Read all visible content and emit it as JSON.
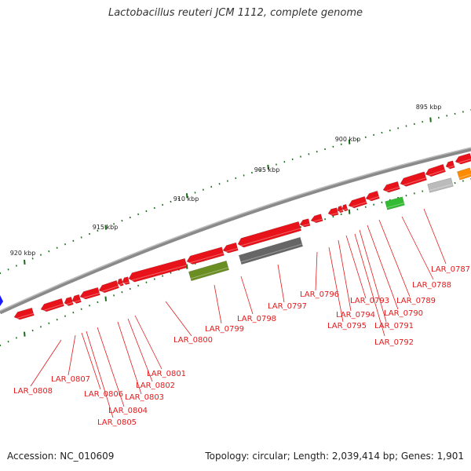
{
  "title": "Lactobacillus reuteri JCM 1112, complete genome",
  "footer": {
    "accession": "Accession: NC_010609",
    "summary": "Topology: circular; Length: 2,039,414 bp; Genes: 1,901"
  },
  "scale": [
    {
      "label": "895 kbp"
    },
    {
      "label": "900 kbp"
    },
    {
      "label": "905 kbp"
    },
    {
      "label": "910 kbp"
    },
    {
      "label": "915 kbp"
    },
    {
      "label": "920 kbp"
    }
  ],
  "genes": [
    {
      "label": "LAR_0787"
    },
    {
      "label": "LAR_0788"
    },
    {
      "label": "LAR_0789"
    },
    {
      "label": "LAR_0790"
    },
    {
      "label": "LAR_0791"
    },
    {
      "label": "LAR_0792"
    },
    {
      "label": "LAR_0793"
    },
    {
      "label": "LAR_0794"
    },
    {
      "label": "LAR_0795"
    },
    {
      "label": "LAR_0796"
    },
    {
      "label": "LAR_0797"
    },
    {
      "label": "LAR_0798"
    },
    {
      "label": "LAR_0799"
    },
    {
      "label": "LAR_0800"
    },
    {
      "label": "LAR_0801"
    },
    {
      "label": "LAR_0802"
    },
    {
      "label": "LAR_0803"
    },
    {
      "label": "LAR_0804"
    },
    {
      "label": "LAR_0805"
    },
    {
      "label": "LAR_0806"
    },
    {
      "label": "LAR_0807"
    },
    {
      "label": "LAR_0808"
    }
  ],
  "colors": {
    "cds": "#e8121a",
    "trna": "#6b8e23",
    "rrna": "#666666",
    "other_gray": "#bbbbbb",
    "green": "#33bb33",
    "orange": "#ff8c00",
    "blue": "#1a1aff",
    "label": "#e41a1c",
    "backbone": "#8a8a8a",
    "tick": "#1a6b1a"
  }
}
